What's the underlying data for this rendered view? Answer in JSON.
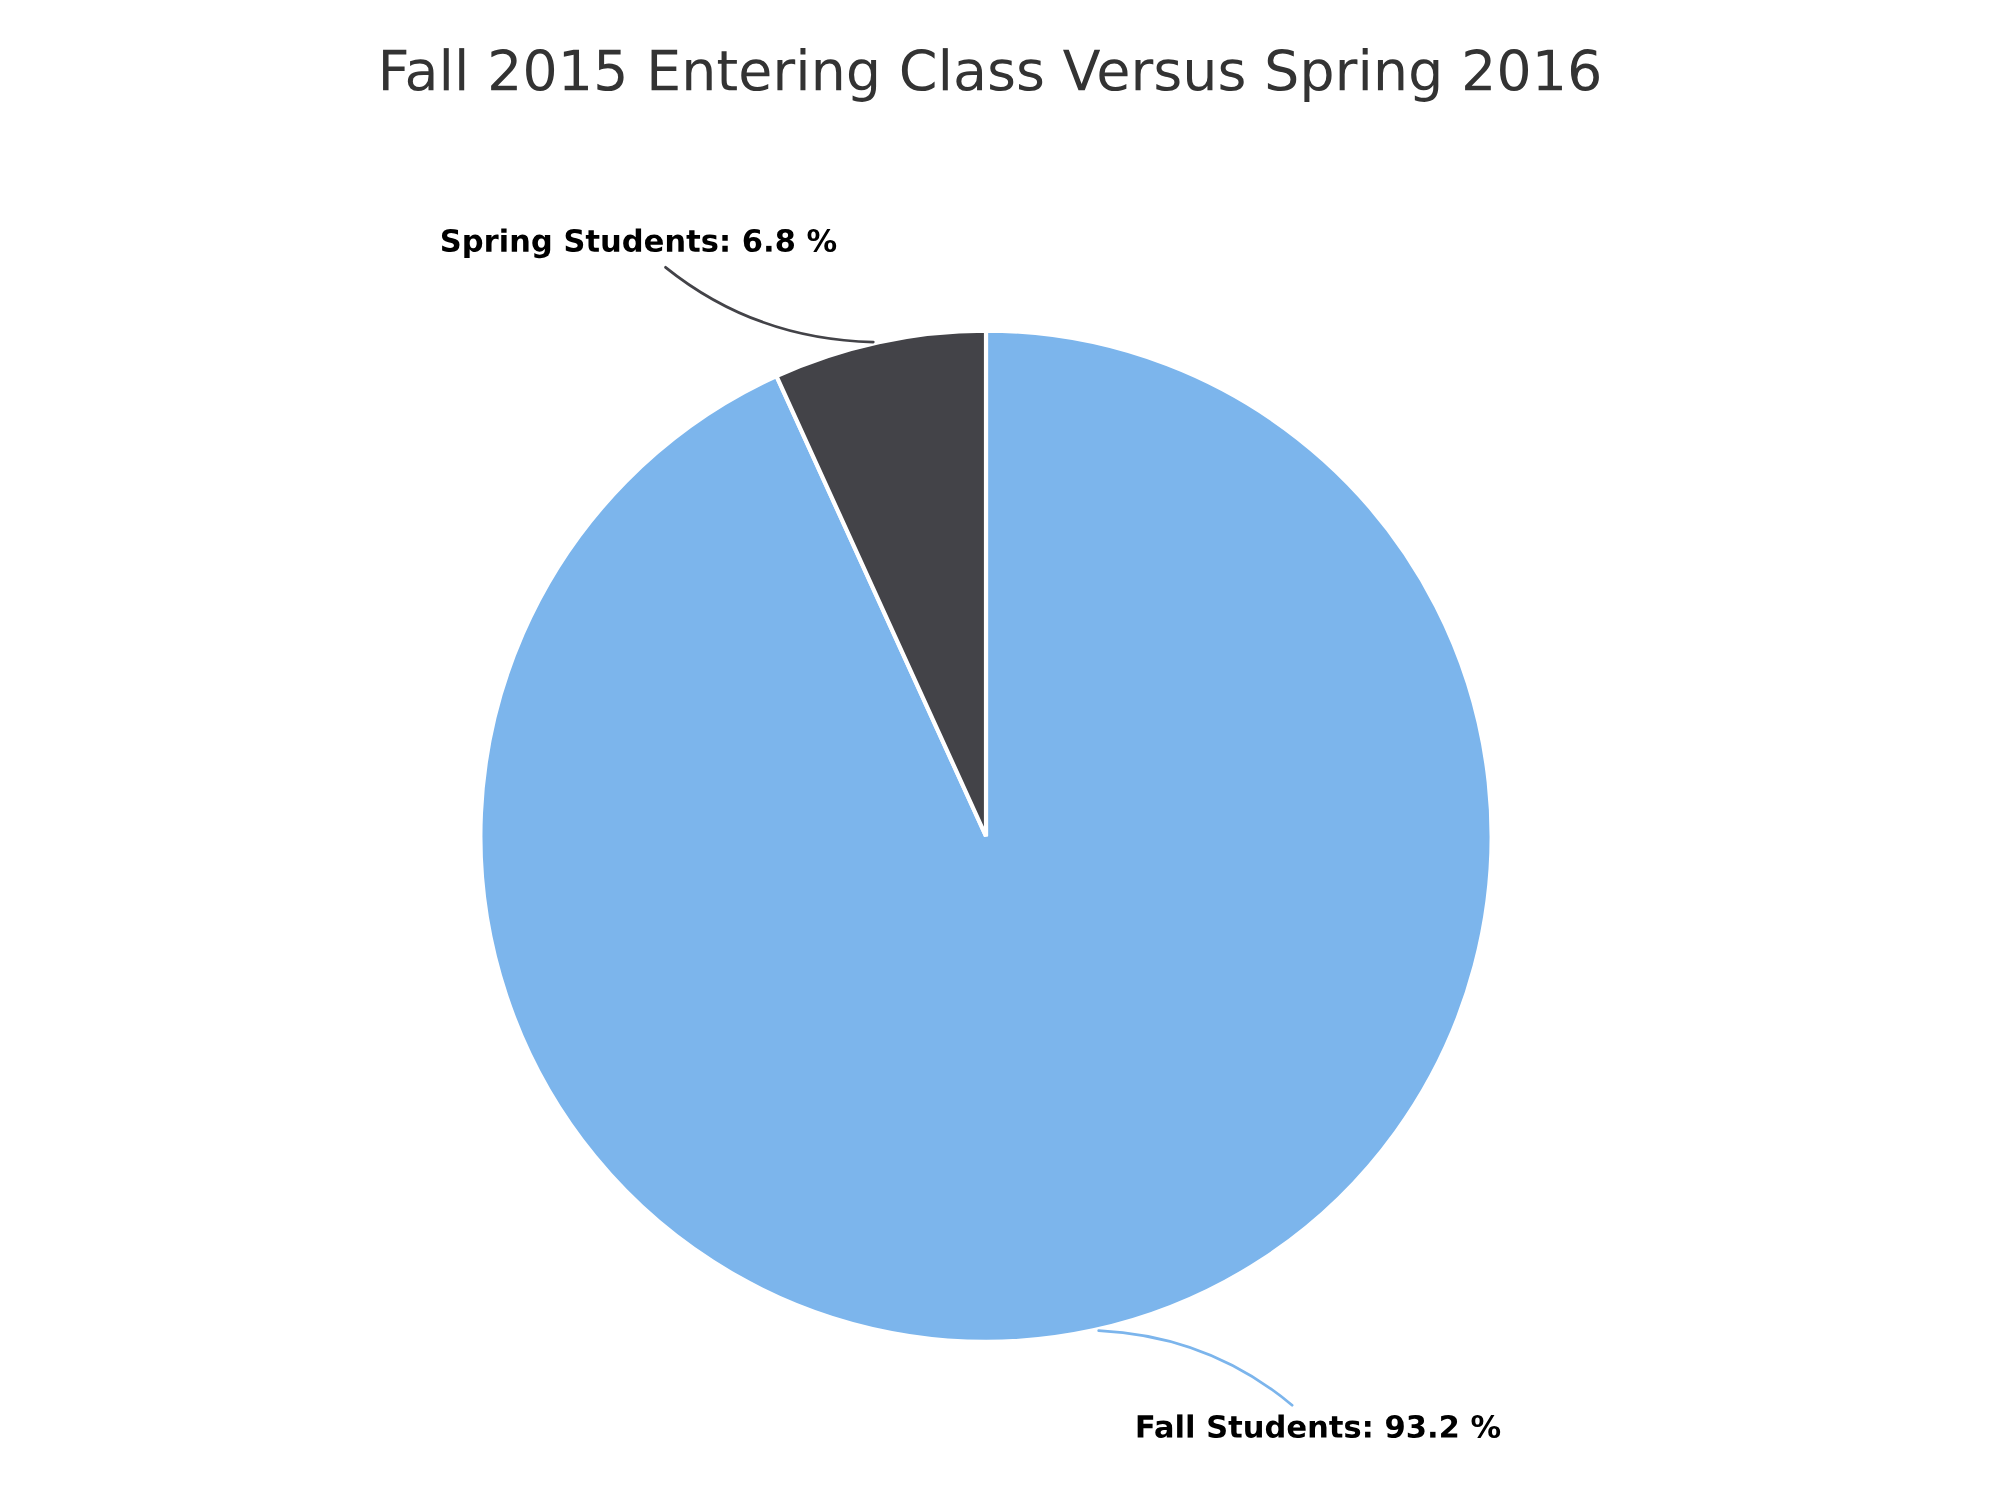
{
  "chart_data": {
    "type": "pie",
    "title": "Fall 2015 Entering Class Versus Spring 2016",
    "categories": [
      "Fall Students",
      "Spring Students"
    ],
    "values": [
      93.2,
      6.8
    ],
    "colors": [
      "#7cb5ec",
      "#434348"
    ],
    "value_labels": [
      "93.2 %",
      "6.8 %"
    ],
    "legend": false
  }
}
